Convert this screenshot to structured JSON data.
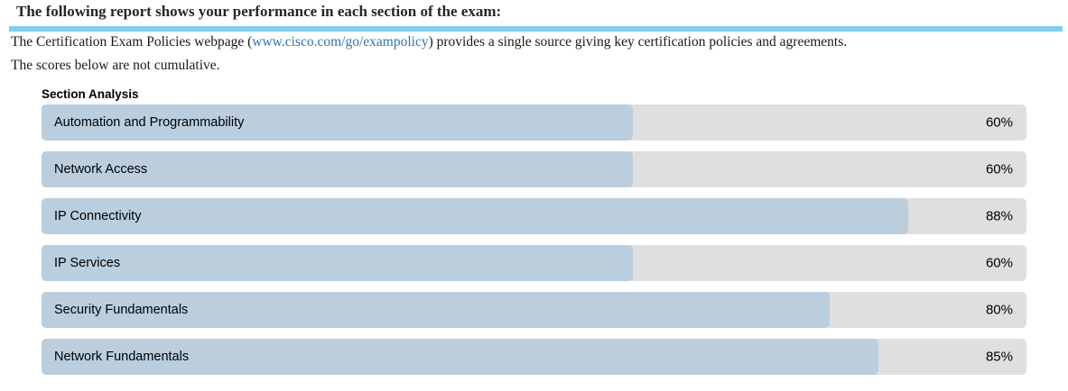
{
  "header": {
    "title": "The following report shows your performance in each section of the exam:"
  },
  "intro": {
    "policy_prefix": "The Certification Exam Policies webpage (",
    "policy_link": "www.cisco.com/go/exampolicy",
    "policy_suffix": ") provides a single source giving key certification policies and agreements.",
    "note": "The scores below are not cumulative."
  },
  "colors": {
    "divider_blue": "#7ed0f2",
    "link_blue": "#2c74b8",
    "bar_fill": "#bbcedd",
    "bar_track": "#dfdfdf"
  },
  "chart_data": {
    "type": "bar",
    "orientation": "horizontal",
    "title": "Section Analysis",
    "categories": [
      "Automation and Programmability",
      "Network Access",
      "IP Connectivity",
      "IP Services",
      "Security Fundamentals",
      "Network Fundamentals"
    ],
    "values": [
      60,
      60,
      88,
      60,
      80,
      85
    ],
    "value_suffix": "%",
    "xlim": [
      0,
      100
    ],
    "grid": false,
    "legend": false,
    "bar_color": "#bbcedd",
    "track_color": "#dfdfdf"
  }
}
